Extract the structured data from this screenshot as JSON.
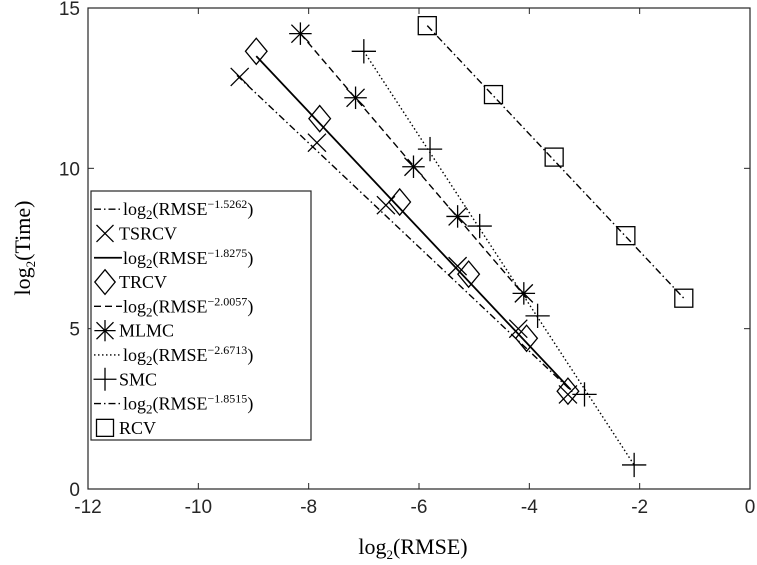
{
  "chart_data": {
    "type": "line",
    "xlabel_base": "log",
    "xlabel_sub": "2",
    "xlabel_arg": "(RMSE)",
    "ylabel_base": "log",
    "ylabel_sub": "2",
    "ylabel_arg": "(Time)",
    "xlim": [
      -12,
      0
    ],
    "ylim": [
      0,
      15
    ],
    "xticks": [
      -12,
      -10,
      -8,
      -6,
      -4,
      -2,
      0
    ],
    "yticks": [
      0,
      5,
      10,
      15
    ],
    "grid": false,
    "legend_position": "bottom-left",
    "series": [
      {
        "name": "TSRCV",
        "marker": "x",
        "points": [
          [
            -9.25,
            12.85
          ],
          [
            -7.85,
            10.8
          ],
          [
            -6.6,
            8.85
          ],
          [
            -5.3,
            6.95
          ],
          [
            -4.2,
            5.0
          ],
          [
            -3.3,
            2.95
          ]
        ],
        "fit_label": "log",
        "fit_sub": "2",
        "fit_arg": "(RMSE",
        "fit_exp": "−1.5262",
        "fit_line": [
          [
            -9.3,
            12.9
          ],
          [
            -3.2,
            3.0
          ]
        ],
        "fit_style": "dashdot"
      },
      {
        "name": "TRCV",
        "marker": "diamond",
        "points": [
          [
            -8.95,
            13.65
          ],
          [
            -7.8,
            11.55
          ],
          [
            -6.35,
            8.95
          ],
          [
            -5.1,
            6.7
          ],
          [
            -4.05,
            4.7
          ],
          [
            -3.3,
            3.05
          ]
        ],
        "fit_label": "log",
        "fit_sub": "2",
        "fit_arg": "(RMSE",
        "fit_exp": "−1.8275",
        "fit_line": [
          [
            -8.95,
            13.5
          ],
          [
            -3.25,
            3.1
          ]
        ],
        "fit_style": "solid"
      },
      {
        "name": "MLMC",
        "marker": "star",
        "points": [
          [
            -8.15,
            14.2
          ],
          [
            -7.15,
            12.2
          ],
          [
            -6.1,
            10.05
          ],
          [
            -5.3,
            8.5
          ],
          [
            -4.1,
            6.1
          ]
        ],
        "fit_label": "log",
        "fit_sub": "2",
        "fit_arg": "(RMSE",
        "fit_exp": "−2.0057",
        "fit_line": [
          [
            -8.15,
            14.2
          ],
          [
            -4.05,
            5.95
          ]
        ],
        "fit_style": "dashed"
      },
      {
        "name": "SMC",
        "marker": "plus",
        "points": [
          [
            -7.0,
            13.65
          ],
          [
            -5.8,
            10.6
          ],
          [
            -4.9,
            8.2
          ],
          [
            -3.85,
            5.4
          ],
          [
            -3.0,
            2.95
          ],
          [
            -2.1,
            0.75
          ]
        ],
        "fit_label": "log",
        "fit_sub": "2",
        "fit_arg": "(RMSE",
        "fit_exp": "−2.6713",
        "fit_line": [
          [
            -7.0,
            13.65
          ],
          [
            -2.1,
            0.75
          ]
        ],
        "fit_style": "dotted"
      },
      {
        "name": "RCV",
        "marker": "square",
        "points": [
          [
            -5.85,
            14.45
          ],
          [
            -4.65,
            12.3
          ],
          [
            -3.55,
            10.35
          ],
          [
            -2.25,
            7.9
          ],
          [
            -1.2,
            5.95
          ]
        ],
        "fit_label": "log",
        "fit_sub": "2",
        "fit_arg": "(RMSE",
        "fit_exp": "−1.8515",
        "fit_line": [
          [
            -5.85,
            14.45
          ],
          [
            -1.2,
            5.95
          ]
        ],
        "fit_style": "dashdot"
      }
    ]
  }
}
